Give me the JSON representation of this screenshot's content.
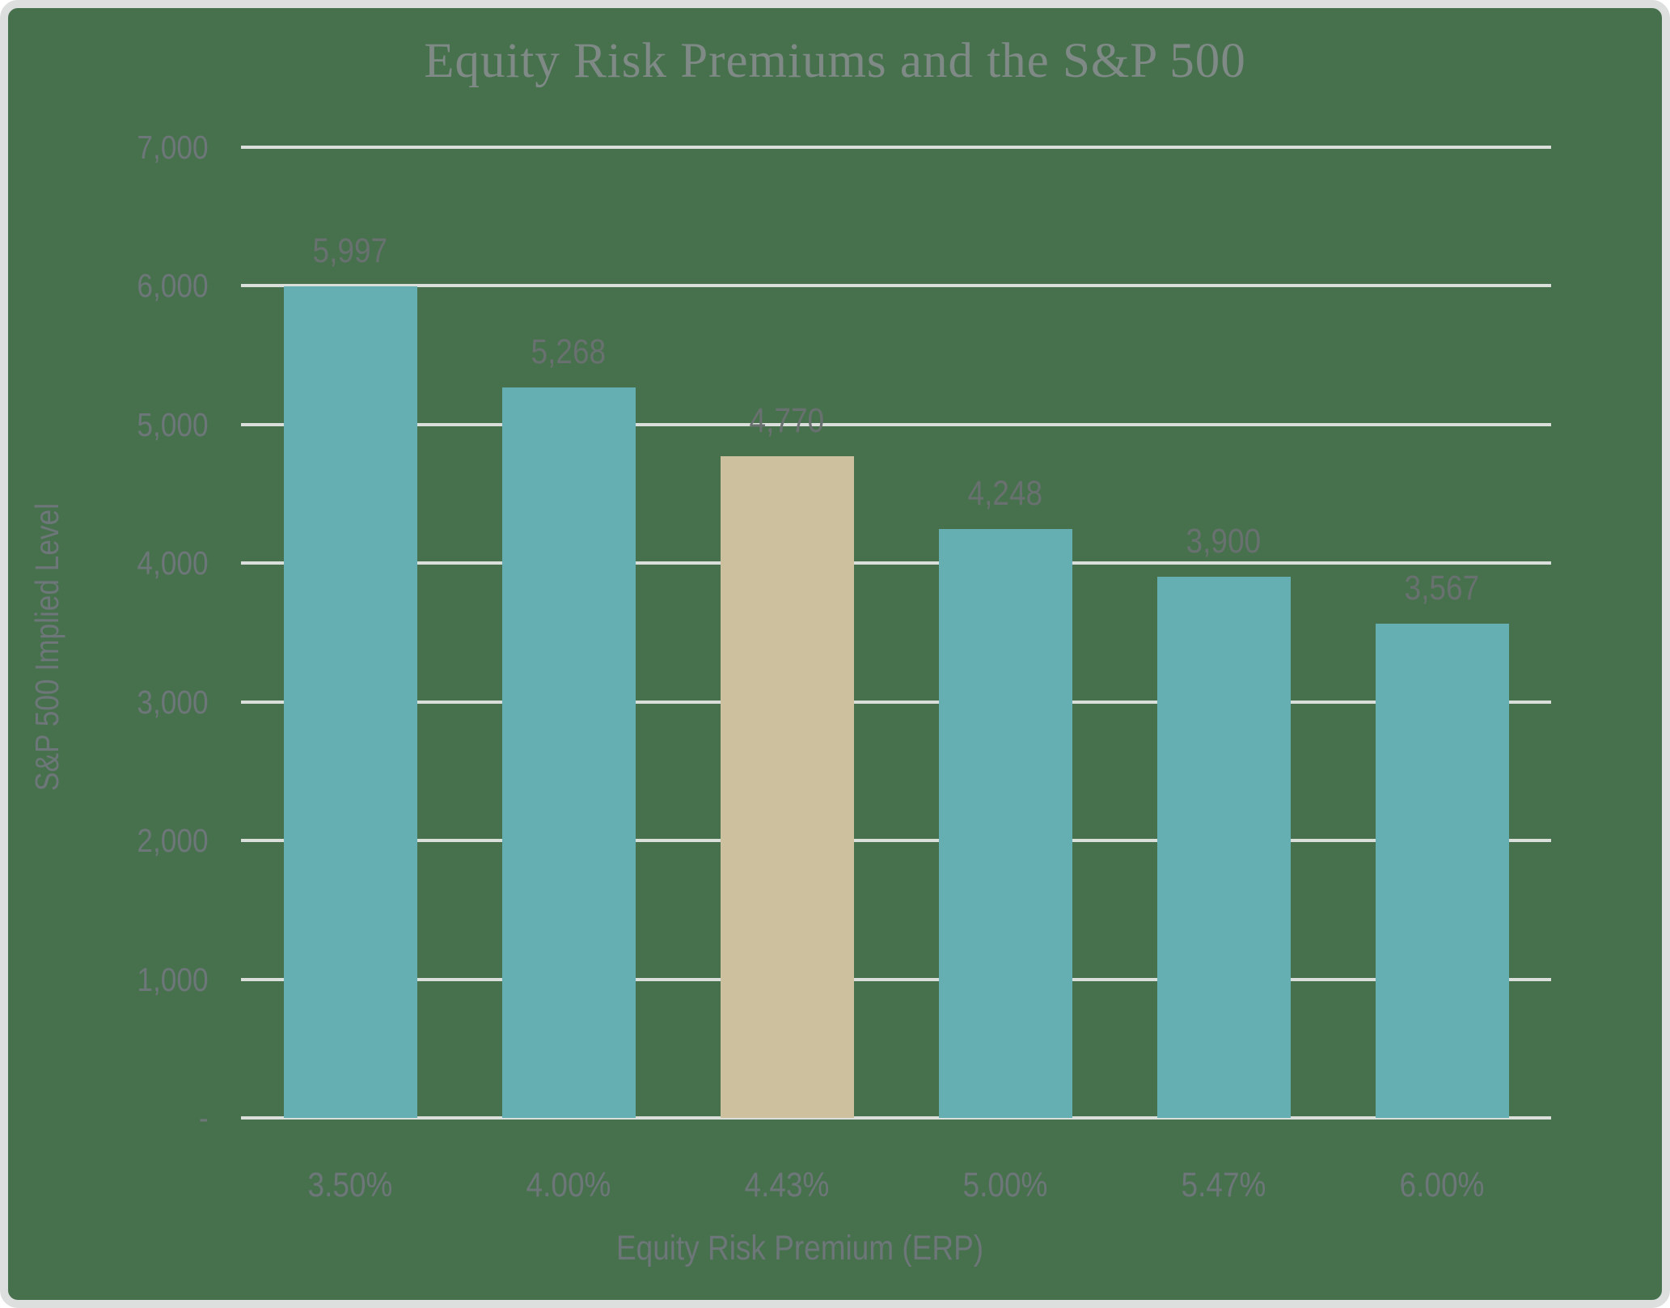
{
  "chart": {
    "title": "Equity Risk Premiums and the S&P 500",
    "y_axis": {
      "title": "S&P 500 Implied Level",
      "tick_labels": [
        "7,000",
        "6,000",
        "5,000",
        "4,000",
        "3,000",
        "2,000",
        "1,000",
        "-"
      ]
    },
    "x_axis": {
      "title": "Equity Risk Premium (ERP)"
    },
    "colors": {
      "background": "#47714d",
      "frame_border": "#dddfde",
      "gridline": "#dbdfdb",
      "title_text": "#7f8a86",
      "tick_text": "#6d7678",
      "data_label_text": "#68716f",
      "bar": "#65aeb2",
      "bar_highlight": "#ccc09e"
    }
  },
  "chart_data": {
    "type": "bar",
    "title": "Equity Risk Premiums and the S&P 500",
    "categories": [
      "3.50%",
      "4.00%",
      "4.43%",
      "5.00%",
      "5.47%",
      "6.00%"
    ],
    "values": [
      5997,
      5268,
      4770,
      4248,
      3900,
      3567
    ],
    "value_labels": [
      "5,997",
      "5,268",
      "4,770",
      "4,248",
      "3,900",
      "3,567"
    ],
    "highlight_index": 2,
    "xlabel": "Equity Risk Premium (ERP)",
    "ylabel": "S&P 500 Implied Level",
    "ylim": [
      0,
      7000
    ],
    "ytick_interval": 1000,
    "grid": true,
    "legend": false,
    "bar_color": "#65aeb2",
    "highlight_color": "#ccc09e"
  }
}
